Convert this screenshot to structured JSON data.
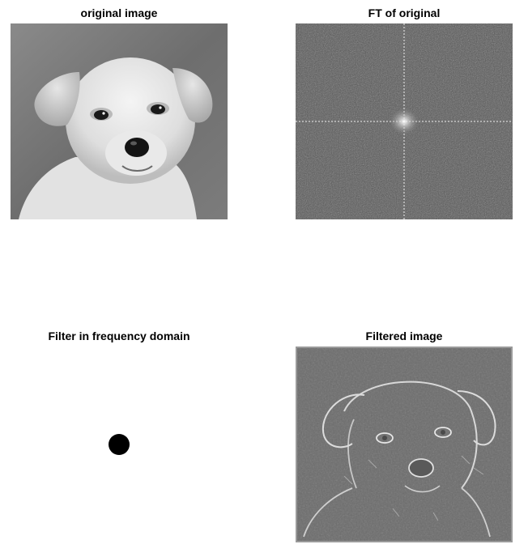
{
  "panels": {
    "original": {
      "title": "original image"
    },
    "ft": {
      "title": "FT of original"
    },
    "filter": {
      "title": "Filter in frequency domain"
    },
    "filtered": {
      "title": "Filtered image"
    }
  }
}
